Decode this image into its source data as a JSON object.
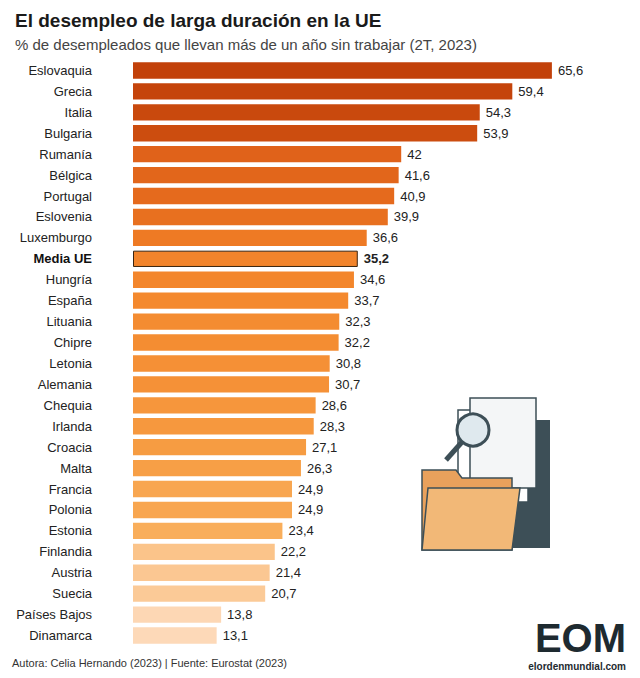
{
  "chart_data": {
    "type": "bar",
    "orientation": "horizontal",
    "title": "El desempleo de larga duración en la UE",
    "subtitle": "% de desempleados que llevan más de un año sin trabajar (2T, 2023)",
    "categories": [
      "Eslovaquia",
      "Grecia",
      "Italia",
      "Bulgaria",
      "Rumanía",
      "Bélgica",
      "Portugal",
      "Eslovenia",
      "Luxemburgo",
      "Media UE",
      "Hungría",
      "España",
      "Lituania",
      "Chipre",
      "Letonia",
      "Alemania",
      "Chequia",
      "Irlanda",
      "Croacia",
      "Malta",
      "Francia",
      "Polonia",
      "Estonia",
      "Finlandia",
      "Austria",
      "Suecia",
      "Países Bajos",
      "Dinamarca"
    ],
    "values": [
      65.6,
      59.4,
      54.3,
      53.9,
      42,
      41.6,
      40.9,
      39.9,
      36.6,
      35.2,
      34.6,
      33.7,
      32.3,
      32.2,
      30.8,
      30.7,
      28.6,
      28.3,
      27.1,
      26.3,
      24.9,
      24.9,
      23.4,
      22.2,
      21.4,
      20.7,
      13.8,
      13.1
    ],
    "value_labels": [
      "65,6",
      "59,4",
      "54,3",
      "53,9",
      "42",
      "41,6",
      "40,9",
      "39,9",
      "36,6",
      "35,2",
      "34,6",
      "33,7",
      "32,3",
      "32,2",
      "30,8",
      "30,7",
      "28,6",
      "28,3",
      "27,1",
      "26,3",
      "24,9",
      "24,9",
      "23,4",
      "22,2",
      "21,4",
      "20,7",
      "13,8",
      "13,1"
    ],
    "colors": [
      "#c2410a",
      "#c5440b",
      "#c9490d",
      "#cc4d0f",
      "#e0621a",
      "#e2661b",
      "#e56a1d",
      "#e8701f",
      "#ee7a24",
      "#f2842b",
      "#f3862c",
      "#f4892e",
      "#f48c31",
      "#f48d32",
      "#f59036",
      "#f59137",
      "#f6963c",
      "#f6983e",
      "#f69c42",
      "#f79f46",
      "#f8a650",
      "#f8a650",
      "#f9ae5b",
      "#fbc48a",
      "#fbc792",
      "#fbca97",
      "#fdd7b4",
      "#fdd9b8"
    ],
    "xlim": [
      0,
      70
    ],
    "tick_labels": false,
    "grid": false,
    "data_labels": true,
    "annotations": [
      "Autora: Celia Hernando (2023) | Fuente: Eurostat (2023)",
      "EOM",
      "elordenmundial.com"
    ]
  }
}
